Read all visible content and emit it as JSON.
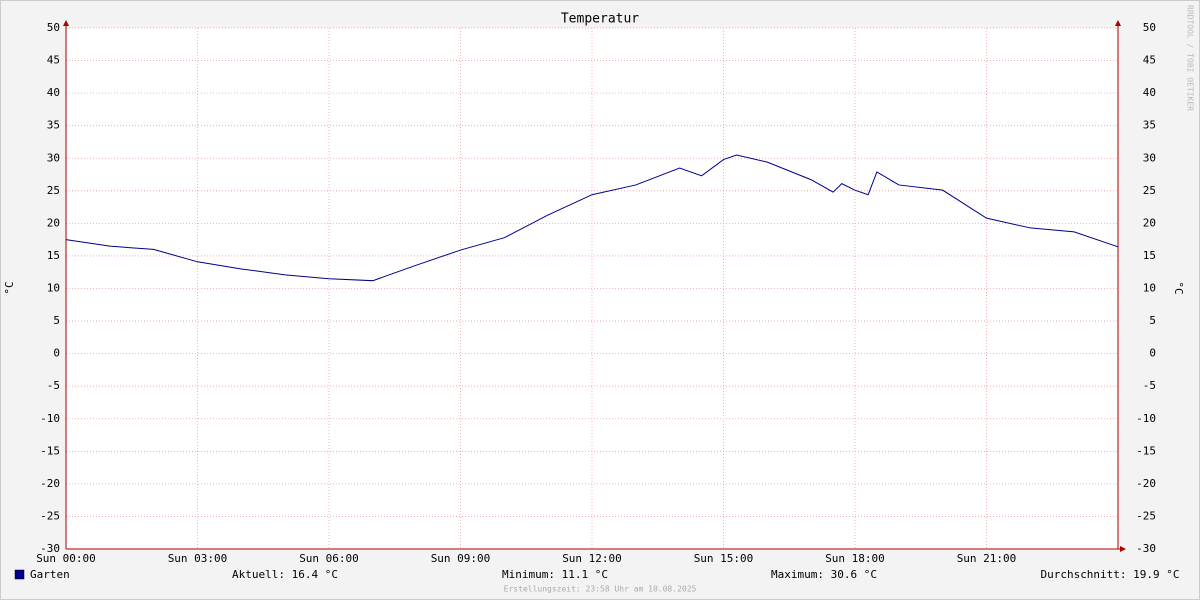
{
  "chart_data": {
    "type": "line",
    "title": "Temperatur",
    "y_label": "°C",
    "watermark": "RRDTOOL / TOBI OETIKER",
    "x": [
      0,
      1,
      2,
      3,
      4,
      5,
      6,
      7,
      8,
      9,
      10,
      11,
      12,
      13,
      14,
      14.5,
      15,
      15.3,
      16,
      17,
      17.5,
      17.7,
      18,
      18.3,
      18.5,
      19,
      20,
      21,
      22,
      23,
      24
    ],
    "series": [
      {
        "name": "Garten",
        "color": "#00008b",
        "values": [
          17.5,
          16.5,
          16.0,
          14.1,
          13.0,
          12.1,
          11.5,
          11.2,
          13.6,
          15.9,
          17.8,
          21.3,
          24.4,
          25.9,
          28.5,
          27.3,
          29.8,
          30.5,
          29.4,
          26.7,
          24.8,
          26.1,
          25.1,
          24.4,
          27.9,
          25.9,
          25.1,
          20.8,
          19.3,
          18.7,
          16.4
        ]
      }
    ],
    "xlim": [
      0,
      24
    ],
    "xticks": [
      {
        "value": 0,
        "label": "Sun 00:00"
      },
      {
        "value": 3,
        "label": "Sun 03:00"
      },
      {
        "value": 6,
        "label": "Sun 06:00"
      },
      {
        "value": 9,
        "label": "Sun 09:00"
      },
      {
        "value": 12,
        "label": "Sun 12:00"
      },
      {
        "value": 15,
        "label": "Sun 15:00"
      },
      {
        "value": 18,
        "label": "Sun 18:00"
      },
      {
        "value": 21,
        "label": "Sun 21:00"
      }
    ],
    "ylim": [
      -30,
      50
    ],
    "yticks": [
      -30,
      -25,
      -20,
      -15,
      -10,
      -5,
      0,
      5,
      10,
      15,
      20,
      25,
      30,
      35,
      40,
      45,
      50
    ],
    "grid": true,
    "stats": [
      "Aktuell: 16.4 °C",
      "Minimum: 11.1 °C",
      "Maximum: 30.6 °C",
      "Durchschnitt: 19.9 °C"
    ],
    "footer": "Erstellungszeit: 23:58 Uhr am 10.08.2025"
  }
}
